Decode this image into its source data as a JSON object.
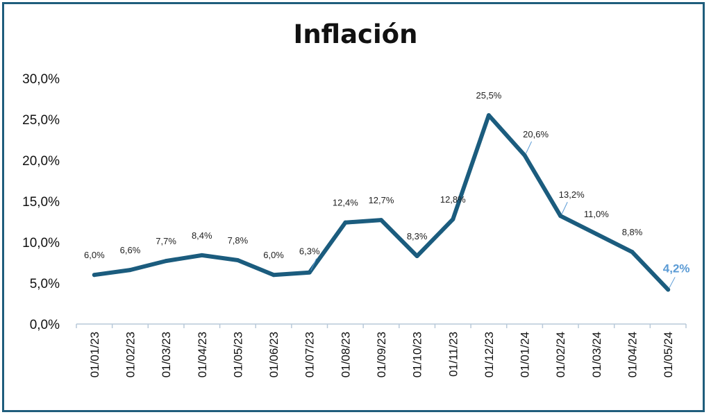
{
  "chart_data": {
    "type": "line",
    "title": "Inflación",
    "categories": [
      "01/01/23",
      "01/02/23",
      "01/03/23",
      "01/04/23",
      "01/05/23",
      "01/06/23",
      "01/07/23",
      "01/08/23",
      "01/09/23",
      "01/10/23",
      "01/11/23",
      "01/12/23",
      "01/01/24",
      "01/02/24",
      "01/03/24",
      "01/04/24",
      "01/05/24"
    ],
    "values": [
      6.0,
      6.6,
      7.7,
      8.4,
      7.8,
      6.0,
      6.3,
      12.4,
      12.7,
      8.3,
      12.8,
      25.5,
      20.6,
      13.2,
      11.0,
      8.8,
      4.2
    ],
    "data_labels": [
      "6,0%",
      "6,6%",
      "7,7%",
      "8,4%",
      "7,8%",
      "6,0%",
      "6,3%",
      "12,4%",
      "12,7%",
      "8,3%",
      "12,8%",
      "25,5%",
      "20,6%",
      "13,2%",
      "11,0%",
      "8,8%",
      "4,2%"
    ],
    "ylim": [
      0,
      30
    ],
    "yticks": [
      "0,0%",
      "5,0%",
      "10,0%",
      "15,0%",
      "20,0%",
      "25,0%",
      "30,0%"
    ],
    "grid": false,
    "legend": "none",
    "line_color": "#1b5c7e",
    "highlight_color": "#5b9bd5",
    "frame_color": "#1f5d7c"
  }
}
